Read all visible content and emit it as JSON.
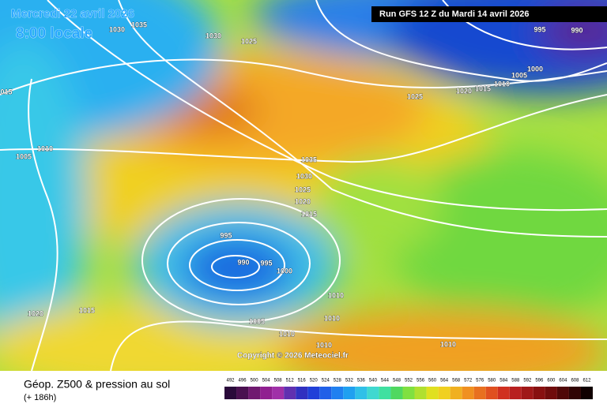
{
  "header": {
    "date": "Mercredi 22 avril 2026",
    "time": "8:00 locale",
    "run": "Run GFS 12 Z du Mardi 14 avril 2026"
  },
  "isobar_labels": [
    "1030",
    "1035",
    "1030",
    "1025",
    "015",
    "1010",
    "1005",
    "1025",
    "1020",
    "1015",
    "1010",
    "1005",
    "1000",
    "995",
    "990",
    "1035",
    "1030",
    "1025",
    "1020",
    "1015",
    "995",
    "990",
    "995",
    "1000",
    "1010",
    "1010",
    "1020",
    "1015",
    "1005",
    "1010",
    "1010",
    "1010"
  ],
  "copyright": "Copyright © 2026 Meteociel.fr",
  "legend": {
    "title": "Géop. Z500 & pression au sol",
    "lead": "(+ 186h)",
    "values": [
      492,
      496,
      500,
      504,
      508,
      512,
      516,
      520,
      524,
      528,
      532,
      536,
      540,
      544,
      548,
      552,
      556,
      560,
      564,
      568,
      572,
      576,
      580,
      584,
      588,
      592,
      596,
      600,
      604,
      608,
      612
    ],
    "colors": [
      "#2a0a3a",
      "#4a1050",
      "#701a70",
      "#902090",
      "#a030a8",
      "#6030b0",
      "#3030c0",
      "#2040d8",
      "#2060e8",
      "#2080f0",
      "#20a0f0",
      "#30c0e8",
      "#40d8d0",
      "#40e0a0",
      "#50d860",
      "#80e040",
      "#b0e030",
      "#e0e020",
      "#f0d020",
      "#f0b020",
      "#f09020",
      "#e87020",
      "#e05020",
      "#d03020",
      "#b82020",
      "#a01818",
      "#881010",
      "#700c0c",
      "#500808",
      "#300404",
      "#100000"
    ]
  }
}
